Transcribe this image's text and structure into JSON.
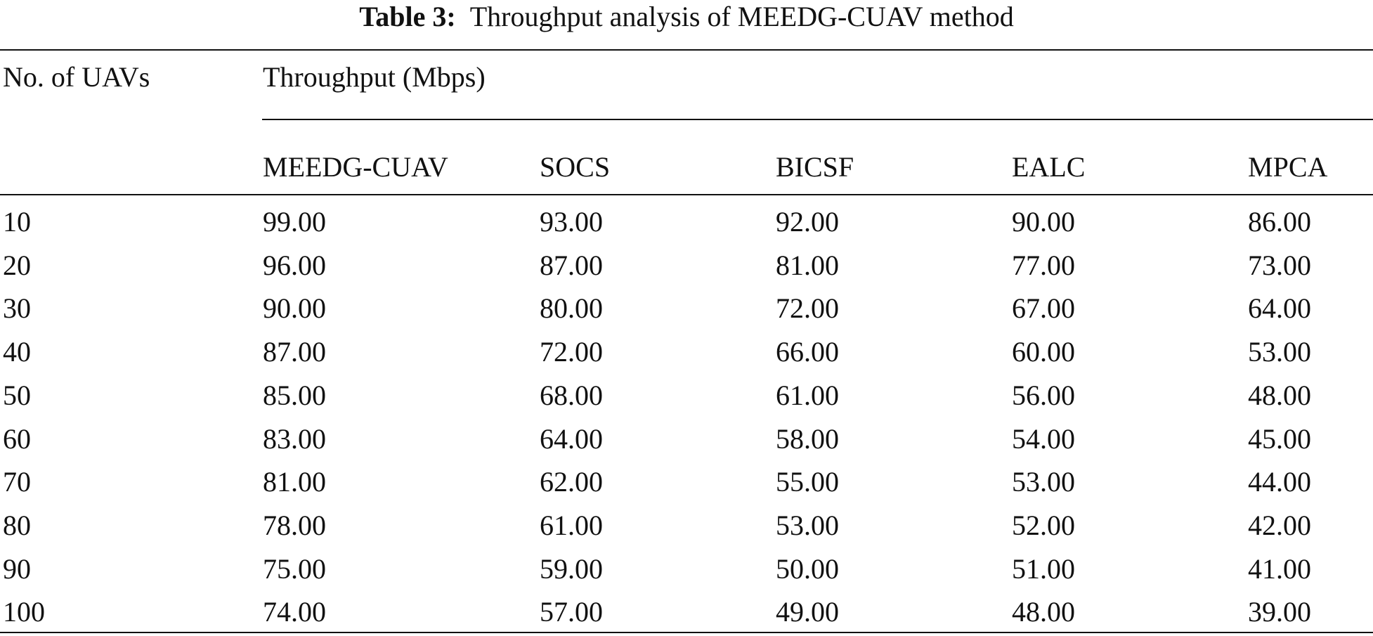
{
  "caption": {
    "label": "Table 3:",
    "text": "Throughput analysis of MEEDG-CUAV method"
  },
  "table": {
    "row_header": "No. of UAVs",
    "group_header": "Throughput (Mbps)",
    "columns": [
      "MEEDG-CUAV",
      "SOCS",
      "BICSF",
      "EALC",
      "MPCA"
    ],
    "rows": [
      [
        "10",
        "99.00",
        "93.00",
        "92.00",
        "90.00",
        "86.00"
      ],
      [
        "20",
        "96.00",
        "87.00",
        "81.00",
        "77.00",
        "73.00"
      ],
      [
        "30",
        "90.00",
        "80.00",
        "72.00",
        "67.00",
        "64.00"
      ],
      [
        "40",
        "87.00",
        "72.00",
        "66.00",
        "60.00",
        "53.00"
      ],
      [
        "50",
        "85.00",
        "68.00",
        "61.00",
        "56.00",
        "48.00"
      ],
      [
        "60",
        "83.00",
        "64.00",
        "58.00",
        "54.00",
        "45.00"
      ],
      [
        "70",
        "81.00",
        "62.00",
        "55.00",
        "53.00",
        "44.00"
      ],
      [
        "80",
        "78.00",
        "61.00",
        "53.00",
        "52.00",
        "42.00"
      ],
      [
        "90",
        "75.00",
        "59.00",
        "50.00",
        "51.00",
        "41.00"
      ],
      [
        "100",
        "74.00",
        "57.00",
        "49.00",
        "48.00",
        "39.00"
      ]
    ]
  }
}
